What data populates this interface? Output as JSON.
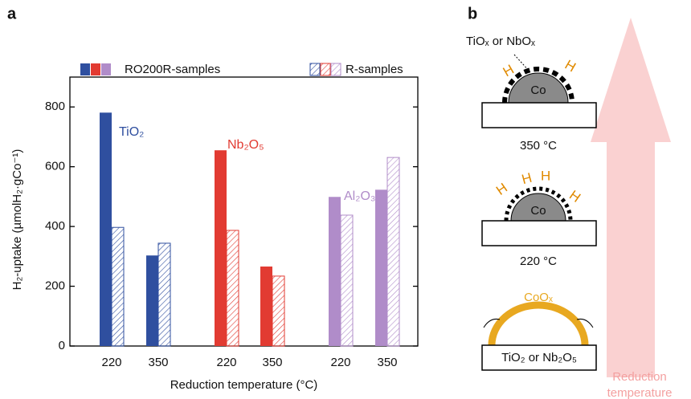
{
  "panel_labels": [
    "a",
    "b"
  ],
  "chart_data": {
    "type": "bar",
    "x_label": "Reduction temperature (°C)",
    "y_label": "H₂-uptake (µmolH₂·gCo⁻¹)",
    "categories": [
      "220",
      "350",
      "220",
      "350",
      "220",
      "350"
    ],
    "group_labels": [
      "TiO₂",
      "Nb₂O₅",
      "Al₂O₃"
    ],
    "group_colors": [
      "#2f4f9f",
      "#e23b32",
      "#b08cc9"
    ],
    "series": [
      {
        "name": "RO200R-samples",
        "style": "solid",
        "values": [
          781,
          303,
          655,
          266,
          499,
          523
        ]
      },
      {
        "name": "R-samples",
        "style": "hatched",
        "values": [
          397,
          344,
          387,
          234,
          438,
          631
        ]
      }
    ],
    "ylim": [
      0,
      900
    ],
    "yticks": [
      0,
      200,
      400,
      600,
      800
    ]
  },
  "diagram": {
    "top_oxide_label": "TiOₓ or NbOₓ",
    "top_particle": "Co",
    "top_temperature": "350 °C",
    "top_h": [
      "H",
      "H"
    ],
    "mid_particle": "Co",
    "mid_temperature": "220 °C",
    "mid_h": [
      "H",
      "H",
      "H",
      "H"
    ],
    "bottom_shell": "CoOₓ",
    "bottom_support": "TiO₂ or Nb₂O₅",
    "arrow_label": [
      "Reduction",
      "temperature"
    ]
  }
}
